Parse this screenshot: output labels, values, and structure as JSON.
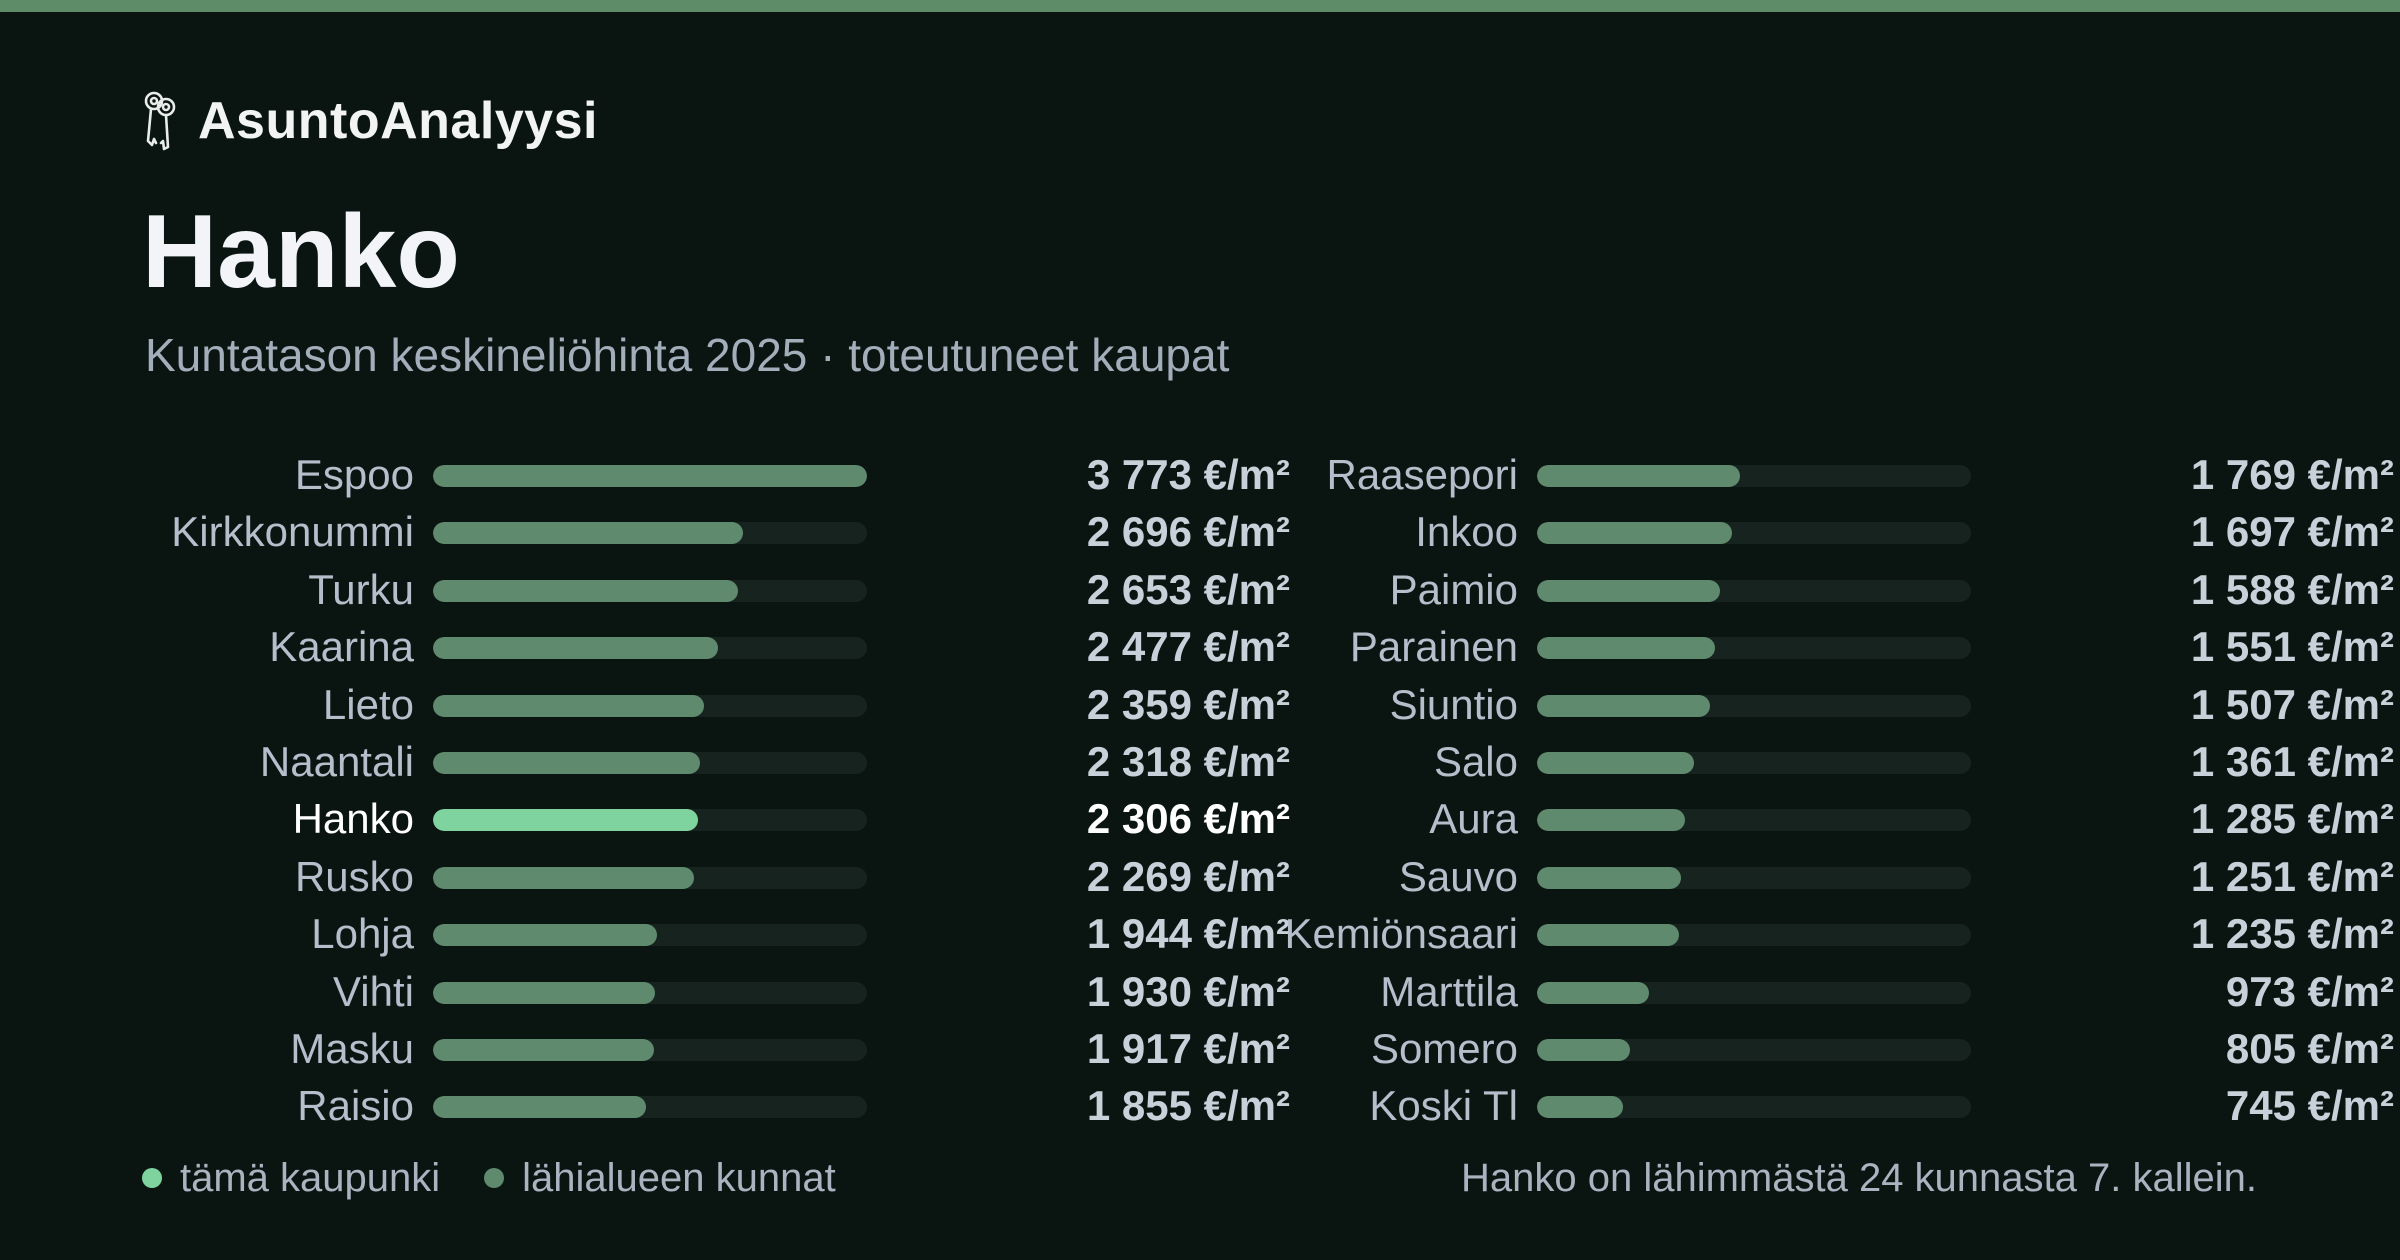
{
  "brand": {
    "name": "AsuntoAnalyysi",
    "icon": "keys-icon"
  },
  "title": "Hanko",
  "subtitle": "Kuntatason keskineliöhinta 2025 · toteutuneet kaupat",
  "colors": {
    "accent": "#7fd39e",
    "bar": "#5f8a6e",
    "track": "#17231f",
    "background": "#0a1512",
    "topbar": "#5e8c68"
  },
  "legend": {
    "this_city": "tämä kaupunki",
    "nearby": "lähialueen kunnat"
  },
  "footnote": "Hanko on lähimmästä 24 kunnasta 7. kallein.",
  "chart_data": {
    "type": "bar",
    "orientation": "horizontal",
    "unit": "€/m²",
    "xlim": [
      0,
      3773
    ],
    "highlight": "Hanko",
    "categories": [
      "Espoo",
      "Kirkkonummi",
      "Turku",
      "Kaarina",
      "Lieto",
      "Naantali",
      "Hanko",
      "Rusko",
      "Lohja",
      "Vihti",
      "Masku",
      "Raisio",
      "Raasepori",
      "Inkoo",
      "Paimio",
      "Parainen",
      "Siuntio",
      "Salo",
      "Aura",
      "Sauvo",
      "Kemiönsaari",
      "Marttila",
      "Somero",
      "Koski Tl"
    ],
    "values": [
      3773,
      2696,
      2653,
      2477,
      2359,
      2318,
      2306,
      2269,
      1944,
      1930,
      1917,
      1855,
      1769,
      1697,
      1588,
      1551,
      1507,
      1361,
      1285,
      1251,
      1235,
      973,
      805,
      745
    ],
    "value_labels": [
      "3 773 €/m²",
      "2 696 €/m²",
      "2 653 €/m²",
      "2 477 €/m²",
      "2 359 €/m²",
      "2 318 €/m²",
      "2 306 €/m²",
      "2 269 €/m²",
      "1 944 €/m²",
      "1 930 €/m²",
      "1 917 €/m²",
      "1 855 €/m²",
      "1 769 €/m²",
      "1 697 €/m²",
      "1 588 €/m²",
      "1 551 €/m²",
      "1 507 €/m²",
      "1 361 €/m²",
      "1 285 €/m²",
      "1 251 €/m²",
      "1 235 €/m²",
      "973 €/m²",
      "805 €/m²",
      "745 €/m²"
    ]
  }
}
